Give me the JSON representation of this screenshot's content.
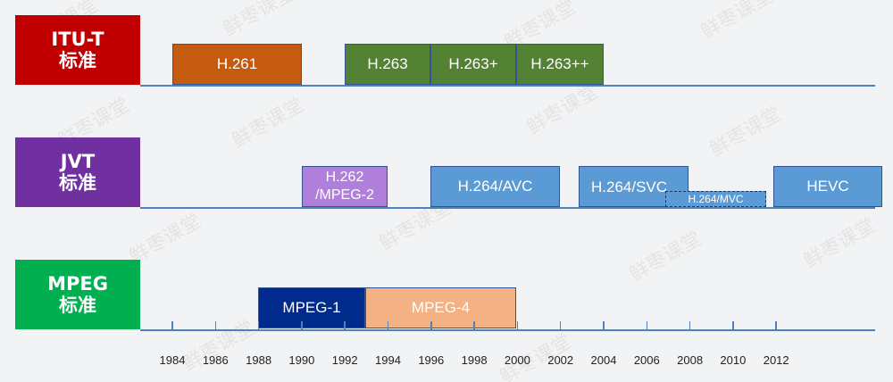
{
  "watermark_text": "鲜枣课堂",
  "categories": [
    {
      "line1": "ITU-T",
      "line2": "标准",
      "color": "#c00000"
    },
    {
      "line1": "JVT",
      "line2": "标准",
      "color": "#7030a0"
    },
    {
      "line1": "MPEG",
      "line2": "标准",
      "color": "#00b050"
    }
  ],
  "blocks": {
    "h261": "H.261",
    "h263": "H.263",
    "h263p": "H.263+",
    "h263pp": "H.263++",
    "h262_line1": "H.262",
    "h262_line2": "/MPEG-2",
    "h264avc": "H.264/AVC",
    "h264svc": "H.264/SVC",
    "h264mvc": "H.264/MVC",
    "hevc": "HEVC",
    "mpeg1": "MPEG-1",
    "mpeg4": "MPEG-4"
  },
  "years": [
    "1984",
    "1986",
    "1988",
    "1990",
    "1992",
    "1994",
    "1996",
    "1998",
    "2000",
    "2002",
    "2004",
    "2006",
    "2008",
    "2010",
    "2012"
  ],
  "colors": {
    "line": "#4f81bd",
    "orange": "#c55a11",
    "green": "#548235",
    "purple_light": "#b07fdc",
    "blue": "#5b9bd5",
    "navy": "#002b8c",
    "peach": "#f4b183"
  }
}
